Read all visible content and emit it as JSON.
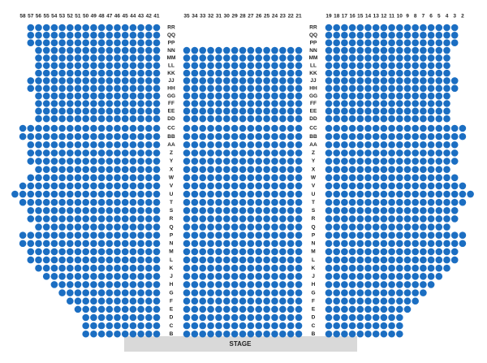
{
  "column_numbers": {
    "left": [
      58,
      57,
      56,
      55,
      54,
      53,
      52,
      51,
      50,
      49,
      48,
      47,
      46,
      45,
      44,
      43,
      42,
      41
    ],
    "center": [
      35,
      34,
      33,
      32,
      31,
      30,
      29,
      28,
      27,
      26,
      25,
      24,
      23,
      22,
      21
    ],
    "right": [
      19,
      18,
      17,
      16,
      15,
      14,
      13,
      12,
      11,
      10,
      9,
      8,
      7,
      6,
      5,
      4,
      3,
      2
    ]
  },
  "rows": [
    "RR",
    "QQ",
    "PP",
    "NN",
    "MM",
    "LL",
    "KK",
    "JJ",
    "HH",
    "GG",
    "FF",
    "EE",
    "DD",
    "CC",
    "BB",
    "AA",
    "Z",
    "Y",
    "X",
    "W",
    "V",
    "U",
    "T",
    "S",
    "R",
    "Q",
    "P",
    "N",
    "M",
    "L",
    "K",
    "J",
    "H",
    "G",
    "F",
    "E",
    "D",
    "C",
    "B"
  ],
  "stage": "STAGE"
}
